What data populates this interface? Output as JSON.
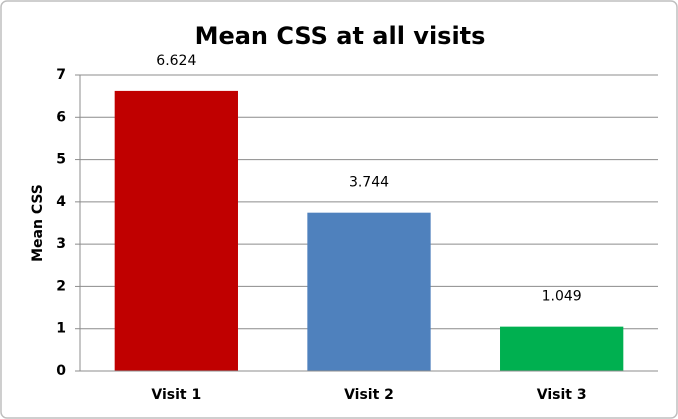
{
  "chart_data": {
    "type": "bar",
    "title": "Mean CSS at all visits",
    "y_label": "Mean CSS",
    "categories": [
      "Visit 1",
      "Visit 2",
      "Visit 3"
    ],
    "values": [
      6.624,
      3.744,
      1.049
    ],
    "colors": [
      "#c00000",
      "#4f81bd",
      "#00b050"
    ],
    "ylim": [
      0,
      7
    ],
    "yticks": [
      0,
      1,
      2,
      3,
      4,
      5,
      6,
      7
    ],
    "grid": true
  }
}
